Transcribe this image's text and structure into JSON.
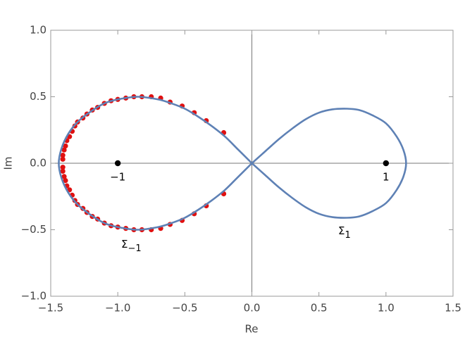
{
  "chart_data": {
    "type": "scatter",
    "xlabel": "Re",
    "ylabel": "Im",
    "xlim": [
      -1.5,
      1.5
    ],
    "ylim": [
      -1,
      1
    ],
    "xticks": [
      {
        "value": -1.5,
        "label": "−1.5"
      },
      {
        "value": -1,
        "label": "−1.0"
      },
      {
        "value": -0.5,
        "label": "−0.5"
      },
      {
        "value": 0,
        "label": "0.0"
      },
      0.5,
      {
        "value": 1,
        "label": "1.0"
      },
      1.5
    ],
    "yticks": [
      {
        "value": -1,
        "label": "−1.0"
      },
      {
        "value": -0.5,
        "label": "−0.5"
      },
      {
        "value": 0,
        "label": "0.0"
      },
      0.5,
      {
        "value": 1,
        "label": "1.0"
      }
    ],
    "curves": [
      {
        "color": "#5e81b5",
        "x": [
          0,
          -0.1,
          -0.2,
          -0.3,
          -0.4,
          -0.5,
          -0.6,
          -0.7,
          -0.85,
          -1.0,
          -1.1,
          -1.2,
          -1.3,
          -1.37,
          -1.42,
          -1.44,
          -1.42,
          -1.37,
          -1.3,
          -1.2,
          -1.1,
          -1.0,
          -0.85,
          -0.7,
          -0.6,
          -0.5,
          -0.4,
          -0.3,
          -0.2,
          -0.1,
          0
        ],
        "y": [
          0,
          0.1,
          0.2,
          0.28,
          0.35,
          0.41,
          0.45,
          0.48,
          0.5,
          0.48,
          0.45,
          0.39,
          0.31,
          0.22,
          0.11,
          0,
          -0.11,
          -0.22,
          -0.31,
          -0.39,
          -0.45,
          -0.48,
          -0.5,
          -0.48,
          -0.45,
          -0.41,
          -0.35,
          -0.28,
          -0.2,
          -0.1,
          0
        ]
      },
      {
        "color": "#5e81b5",
        "x": [
          0,
          0.1,
          0.2,
          0.3,
          0.4,
          0.5,
          0.6,
          0.71,
          0.8,
          0.9,
          1.0,
          1.08,
          1.13,
          1.15,
          1.13,
          1.08,
          1.0,
          0.9,
          0.8,
          0.71,
          0.6,
          0.5,
          0.4,
          0.3,
          0.2,
          0.1,
          0
        ],
        "y": [
          0,
          0.09,
          0.18,
          0.26,
          0.33,
          0.38,
          0.405,
          0.41,
          0.4,
          0.36,
          0.3,
          0.2,
          0.1,
          0,
          -0.1,
          -0.2,
          -0.3,
          -0.36,
          -0.4,
          -0.41,
          -0.405,
          -0.38,
          -0.33,
          -0.26,
          -0.18,
          -0.09,
          0
        ]
      }
    ],
    "dots": {
      "color": "#e01010",
      "x": [
        -0.21,
        -0.34,
        -0.43,
        -0.52,
        -0.61,
        -0.68,
        -0.75,
        -0.82,
        -0.88,
        -0.94,
        -1.0,
        -1.05,
        -1.1,
        -1.15,
        -1.19,
        -1.23,
        -1.26,
        -1.3,
        -1.32,
        -1.34,
        -1.36,
        -1.38,
        -1.39,
        -1.4,
        -1.41,
        -1.41,
        -1.41,
        -1.41,
        -1.4,
        -1.39,
        -1.38,
        -1.36,
        -1.34,
        -1.32,
        -1.3,
        -1.26,
        -1.23,
        -1.19,
        -1.15,
        -1.1,
        -1.05,
        -1.0,
        -0.94,
        -0.88,
        -0.82,
        -0.75,
        -0.68,
        -0.61,
        -0.52,
        -0.43,
        -0.34,
        -0.21
      ],
      "y": [
        0.23,
        0.32,
        0.38,
        0.43,
        0.46,
        0.49,
        0.5,
        0.5,
        0.5,
        0.49,
        0.48,
        0.47,
        0.45,
        0.42,
        0.4,
        0.37,
        0.34,
        0.31,
        0.28,
        0.24,
        0.2,
        0.17,
        0.13,
        0.1,
        0.06,
        0.03,
        -0.03,
        -0.06,
        -0.1,
        -0.13,
        -0.17,
        -0.2,
        -0.24,
        -0.28,
        -0.31,
        -0.34,
        -0.37,
        -0.4,
        -0.42,
        -0.45,
        -0.47,
        -0.48,
        -0.49,
        -0.5,
        -0.5,
        -0.5,
        -0.49,
        -0.46,
        -0.43,
        -0.38,
        -0.32,
        -0.23
      ]
    },
    "points": {
      "color": "#000000",
      "x": [
        -1,
        1
      ],
      "y": [
        0,
        0
      ],
      "labels": [
        "−1",
        "1"
      ]
    },
    "annotations": [
      {
        "text": "Σ",
        "sub": "1"
      },
      {
        "text": "Σ",
        "sub": "−1"
      }
    ]
  }
}
